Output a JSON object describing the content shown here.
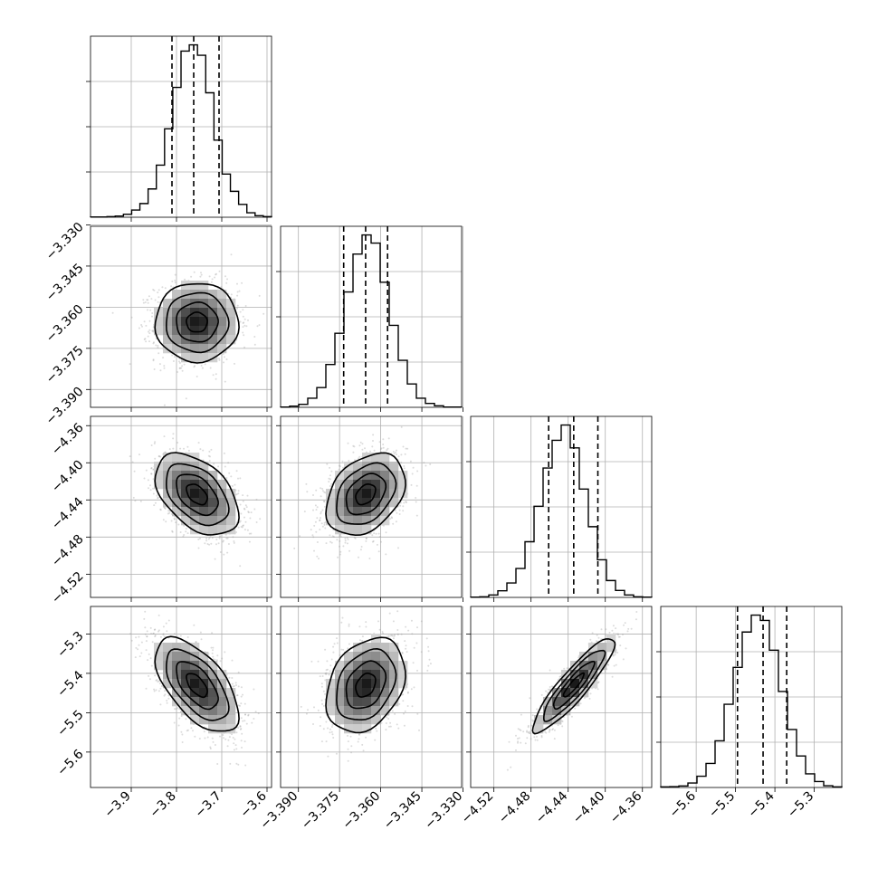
{
  "chart_data": {
    "type": "corner",
    "title": "",
    "grid": true,
    "parameters": [
      {
        "index": 0,
        "range": [
          -3.99,
          -3.59
        ],
        "mean": -3.755,
        "sd": 0.046,
        "quantiles": [
          -3.81,
          -3.762,
          -3.706
        ],
        "ticks": [
          -3.9,
          -3.8,
          -3.7,
          -3.6
        ],
        "tick_labels": [
          "−3.9",
          "−3.8",
          "−3.7",
          "−3.6"
        ],
        "hist_counts": [
          1,
          1,
          2,
          4,
          10,
          24,
          46,
          95,
          175,
          297,
          436,
          558,
          579,
          544,
          418,
          259,
          145,
          87,
          43,
          15,
          5,
          2
        ]
      },
      {
        "index": 1,
        "range": [
          -3.3965,
          -3.3305
        ],
        "mean": -3.3655,
        "sd": 0.0072,
        "quantiles": [
          -3.3735,
          -3.3655,
          -3.3575
        ],
        "ticks": [
          -3.39,
          -3.375,
          -3.36,
          -3.345,
          -3.33
        ],
        "tick_labels": [
          "−3.390",
          "−3.375",
          "−3.360",
          "−3.345",
          "−3.330"
        ],
        "hist_counts": [
          1,
          4,
          10,
          30,
          65,
          141,
          244,
          380,
          505,
          568,
          541,
          412,
          270,
          155,
          77,
          30,
          13,
          5,
          1,
          1
        ]
      },
      {
        "index": 2,
        "range": [
          -4.545,
          -4.35
        ],
        "mean": -4.434,
        "sd": 0.022,
        "quantiles": [
          -4.461,
          -4.434,
          -4.408
        ],
        "ticks": [
          -4.52,
          -4.48,
          -4.44,
          -4.4,
          -4.36
        ],
        "tick_labels": [
          "−4.52",
          "−4.48",
          "−4.44",
          "−4.40",
          "−4.36"
        ],
        "hist_counts": [
          1,
          2,
          8,
          22,
          48,
          96,
          185,
          303,
          430,
          522,
          573,
          497,
          360,
          235,
          125,
          56,
          23,
          8,
          2,
          1
        ]
      },
      {
        "index": 3,
        "range": [
          -5.69,
          -5.23
        ],
        "mean": -5.43,
        "sd": 0.06,
        "quantiles": [
          -5.495,
          -5.43,
          -5.37
        ],
        "ticks": [
          -5.6,
          -5.5,
          -5.4,
          -5.3
        ],
        "tick_labels": [
          "−5.6",
          "−5.5",
          "−5.4",
          "−5.3"
        ],
        "hist_counts": [
          2,
          3,
          5,
          15,
          38,
          81,
          157,
          280,
          404,
          523,
          580,
          562,
          462,
          323,
          195,
          106,
          46,
          20,
          6,
          2
        ]
      }
    ],
    "pairs": [
      {
        "row": 1,
        "col": 0,
        "correlation": 0.0,
        "contour_levels_sigma": [
          0.5,
          1.0,
          1.5,
          2.0
        ]
      },
      {
        "row": 2,
        "col": 0,
        "correlation": -0.45,
        "contour_levels_sigma": [
          0.5,
          1.0,
          1.5,
          2.0
        ]
      },
      {
        "row": 2,
        "col": 1,
        "correlation": 0.35,
        "contour_levels_sigma": [
          0.5,
          1.0,
          1.5,
          2.0
        ]
      },
      {
        "row": 3,
        "col": 0,
        "correlation": -0.6,
        "contour_levels_sigma": [
          0.5,
          1.0,
          1.5,
          2.0
        ]
      },
      {
        "row": 3,
        "col": 1,
        "correlation": 0.3,
        "contour_levels_sigma": [
          0.5,
          1.0,
          1.5,
          2.0
        ]
      },
      {
        "row": 3,
        "col": 2,
        "correlation": 0.9,
        "contour_levels_sigma": [
          0.5,
          1.0,
          1.5,
          2.0
        ]
      }
    ],
    "colors": {
      "line": "#000000",
      "density_low": "#ffffff",
      "density_high": "#000000",
      "points": "#9a9a9a",
      "grid": "#b0b0b0"
    }
  }
}
